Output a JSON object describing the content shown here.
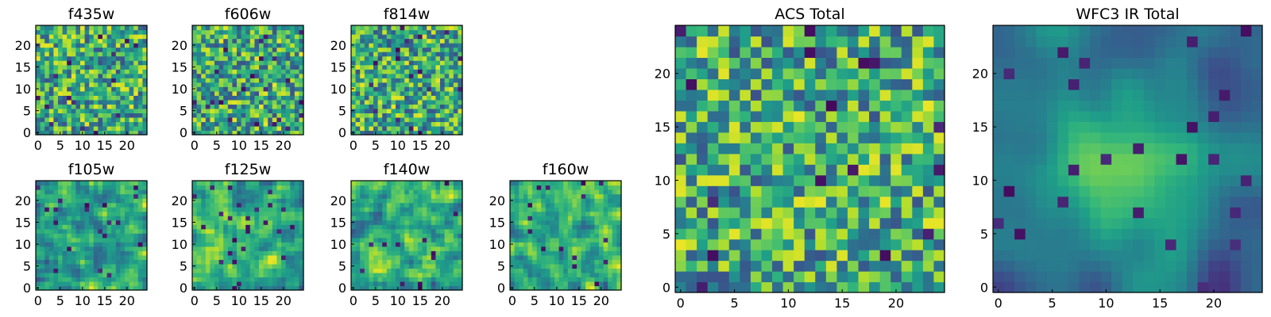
{
  "chart_data": [
    {
      "type": "heatmap",
      "title": "f435w",
      "xticks": [
        "0",
        "5",
        "10",
        "15",
        "20"
      ],
      "yticks": [
        "0",
        "5",
        "10",
        "15",
        "20"
      ],
      "xlim": [
        0,
        24
      ],
      "ylim": [
        0,
        24
      ],
      "grid_size": 25,
      "seed": 11,
      "smoothing": 0,
      "colormap": "viridis"
    },
    {
      "type": "heatmap",
      "title": "f606w",
      "xticks": [
        "0",
        "5",
        "10",
        "15",
        "20"
      ],
      "yticks": [
        "0",
        "5",
        "10",
        "15",
        "20"
      ],
      "xlim": [
        0,
        24
      ],
      "ylim": [
        0,
        24
      ],
      "grid_size": 25,
      "seed": 23,
      "smoothing": 0,
      "colormap": "viridis"
    },
    {
      "type": "heatmap",
      "title": "f814w",
      "xticks": [
        "0",
        "5",
        "10",
        "15",
        "20"
      ],
      "yticks": [
        "0",
        "5",
        "10",
        "15",
        "20"
      ],
      "xlim": [
        0,
        24
      ],
      "ylim": [
        0,
        24
      ],
      "grid_size": 25,
      "seed": 37,
      "smoothing": 0,
      "colormap": "viridis"
    },
    {
      "type": "heatmap",
      "title": "f105w",
      "xticks": [
        "0",
        "5",
        "10",
        "15",
        "20"
      ],
      "yticks": [
        "0",
        "5",
        "10",
        "15",
        "20"
      ],
      "xlim": [
        0,
        24
      ],
      "ylim": [
        0,
        24
      ],
      "grid_size": 25,
      "seed": 41,
      "smoothing": 1,
      "colormap": "viridis"
    },
    {
      "type": "heatmap",
      "title": "f125w",
      "xticks": [
        "0",
        "5",
        "10",
        "15",
        "20"
      ],
      "yticks": [
        "0",
        "5",
        "10",
        "15",
        "20"
      ],
      "xlim": [
        0,
        24
      ],
      "ylim": [
        0,
        24
      ],
      "grid_size": 25,
      "seed": 53,
      "smoothing": 1,
      "colormap": "viridis"
    },
    {
      "type": "heatmap",
      "title": "f140w",
      "xticks": [
        "0",
        "5",
        "10",
        "15",
        "20"
      ],
      "yticks": [
        "0",
        "5",
        "10",
        "15",
        "20"
      ],
      "xlim": [
        0,
        24
      ],
      "ylim": [
        0,
        24
      ],
      "grid_size": 25,
      "seed": 67,
      "smoothing": 1,
      "colormap": "viridis"
    },
    {
      "type": "heatmap",
      "title": "f160w",
      "xticks": [
        "0",
        "5",
        "10",
        "15",
        "20"
      ],
      "yticks": [
        "0",
        "5",
        "10",
        "15",
        "20"
      ],
      "xlim": [
        0,
        24
      ],
      "ylim": [
        0,
        24
      ],
      "grid_size": 25,
      "seed": 79,
      "smoothing": 1,
      "colormap": "viridis"
    },
    {
      "type": "heatmap",
      "title": "ACS Total",
      "xticks": [
        "0",
        "5",
        "10",
        "15",
        "20"
      ],
      "yticks": [
        "0",
        "5",
        "10",
        "15",
        "20"
      ],
      "xlim": [
        0,
        24
      ],
      "ylim": [
        0,
        24
      ],
      "grid_size": 25,
      "seed": 97,
      "smoothing": 0,
      "colormap": "viridis"
    },
    {
      "type": "heatmap",
      "title": "WFC3 IR Total",
      "xticks": [
        "0",
        "5",
        "10",
        "15",
        "20"
      ],
      "yticks": [
        "0",
        "5",
        "10",
        "15",
        "20"
      ],
      "xlim": [
        0,
        24
      ],
      "ylim": [
        0,
        24
      ],
      "grid_size": 25,
      "seed": 131,
      "smoothing": 3,
      "colormap": "viridis",
      "central_peak": true
    }
  ]
}
